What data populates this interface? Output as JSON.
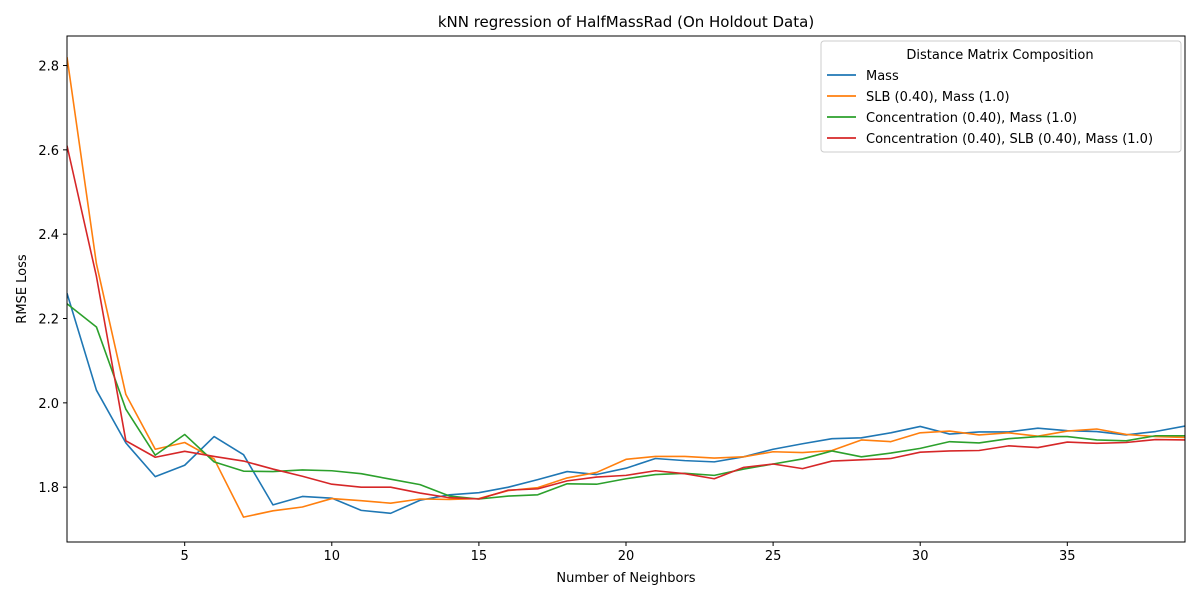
{
  "chart_data": {
    "type": "line",
    "title": "kNN regression of HalfMassRad (On Holdout Data)",
    "xlabel": "Number of Neighbors",
    "ylabel": "RMSE Loss",
    "xlim": [
      1,
      39
    ],
    "ylim": [
      1.67,
      2.87
    ],
    "xticks": [
      5,
      10,
      15,
      20,
      25,
      30,
      35
    ],
    "yticks": [
      1.8,
      2.0,
      2.2,
      2.4,
      2.6,
      2.8
    ],
    "ytick_labels": [
      "1.8",
      "2.0",
      "2.2",
      "2.4",
      "2.6",
      "2.8"
    ],
    "legend_title": "Distance Matrix Composition",
    "legend_position": "top-right",
    "grid": false,
    "x": [
      1,
      2,
      3,
      4,
      5,
      6,
      7,
      8,
      9,
      10,
      11,
      12,
      13,
      14,
      15,
      16,
      17,
      18,
      19,
      20,
      21,
      22,
      23,
      24,
      25,
      26,
      27,
      28,
      29,
      30,
      31,
      32,
      33,
      34,
      35,
      36,
      37,
      38,
      39
    ],
    "series": [
      {
        "name": "Mass",
        "color": "#1f77b4",
        "values": [
          2.26,
          2.03,
          1.905,
          1.825,
          1.852,
          1.92,
          1.877,
          1.758,
          1.778,
          1.774,
          1.745,
          1.738,
          1.769,
          1.782,
          1.787,
          1.8,
          1.818,
          1.837,
          1.83,
          1.845,
          1.868,
          1.863,
          1.86,
          1.872,
          1.89,
          1.903,
          1.915,
          1.917,
          1.929,
          1.944,
          1.926,
          1.931,
          1.931,
          1.94,
          1.934,
          1.932,
          1.924,
          1.932,
          1.945
        ]
      },
      {
        "name": "SLB (0.40), Mass (1.0)",
        "color": "#ff7f0e",
        "values": [
          2.82,
          2.33,
          2.02,
          1.89,
          1.906,
          1.867,
          1.729,
          1.744,
          1.753,
          1.773,
          1.768,
          1.762,
          1.772,
          1.771,
          1.773,
          1.792,
          1.799,
          1.822,
          1.835,
          1.866,
          1.873,
          1.873,
          1.869,
          1.872,
          1.884,
          1.882,
          1.887,
          1.912,
          1.908,
          1.929,
          1.933,
          1.924,
          1.929,
          1.921,
          1.933,
          1.938,
          1.925,
          1.92,
          1.918
        ]
      },
      {
        "name": "Concentration (0.40), Mass (1.0)",
        "color": "#2ca02c",
        "values": [
          2.235,
          2.18,
          1.985,
          1.876,
          1.925,
          1.86,
          1.838,
          1.837,
          1.841,
          1.839,
          1.832,
          1.819,
          1.806,
          1.779,
          1.772,
          1.779,
          1.782,
          1.808,
          1.807,
          1.82,
          1.83,
          1.833,
          1.828,
          1.843,
          1.855,
          1.867,
          1.886,
          1.872,
          1.881,
          1.892,
          1.908,
          1.905,
          1.915,
          1.92,
          1.92,
          1.912,
          1.91,
          1.922,
          1.922
        ]
      },
      {
        "name": "Concentration (0.40), SLB (0.40), Mass (1.0)",
        "color": "#d62728",
        "values": [
          2.61,
          2.3,
          1.91,
          1.871,
          1.885,
          1.873,
          1.862,
          1.843,
          1.826,
          1.807,
          1.8,
          1.8,
          1.786,
          1.775,
          1.772,
          1.793,
          1.796,
          1.815,
          1.824,
          1.828,
          1.839,
          1.832,
          1.82,
          1.847,
          1.855,
          1.844,
          1.862,
          1.865,
          1.868,
          1.883,
          1.886,
          1.887,
          1.898,
          1.894,
          1.907,
          1.904,
          1.906,
          1.913,
          1.912
        ]
      }
    ]
  }
}
